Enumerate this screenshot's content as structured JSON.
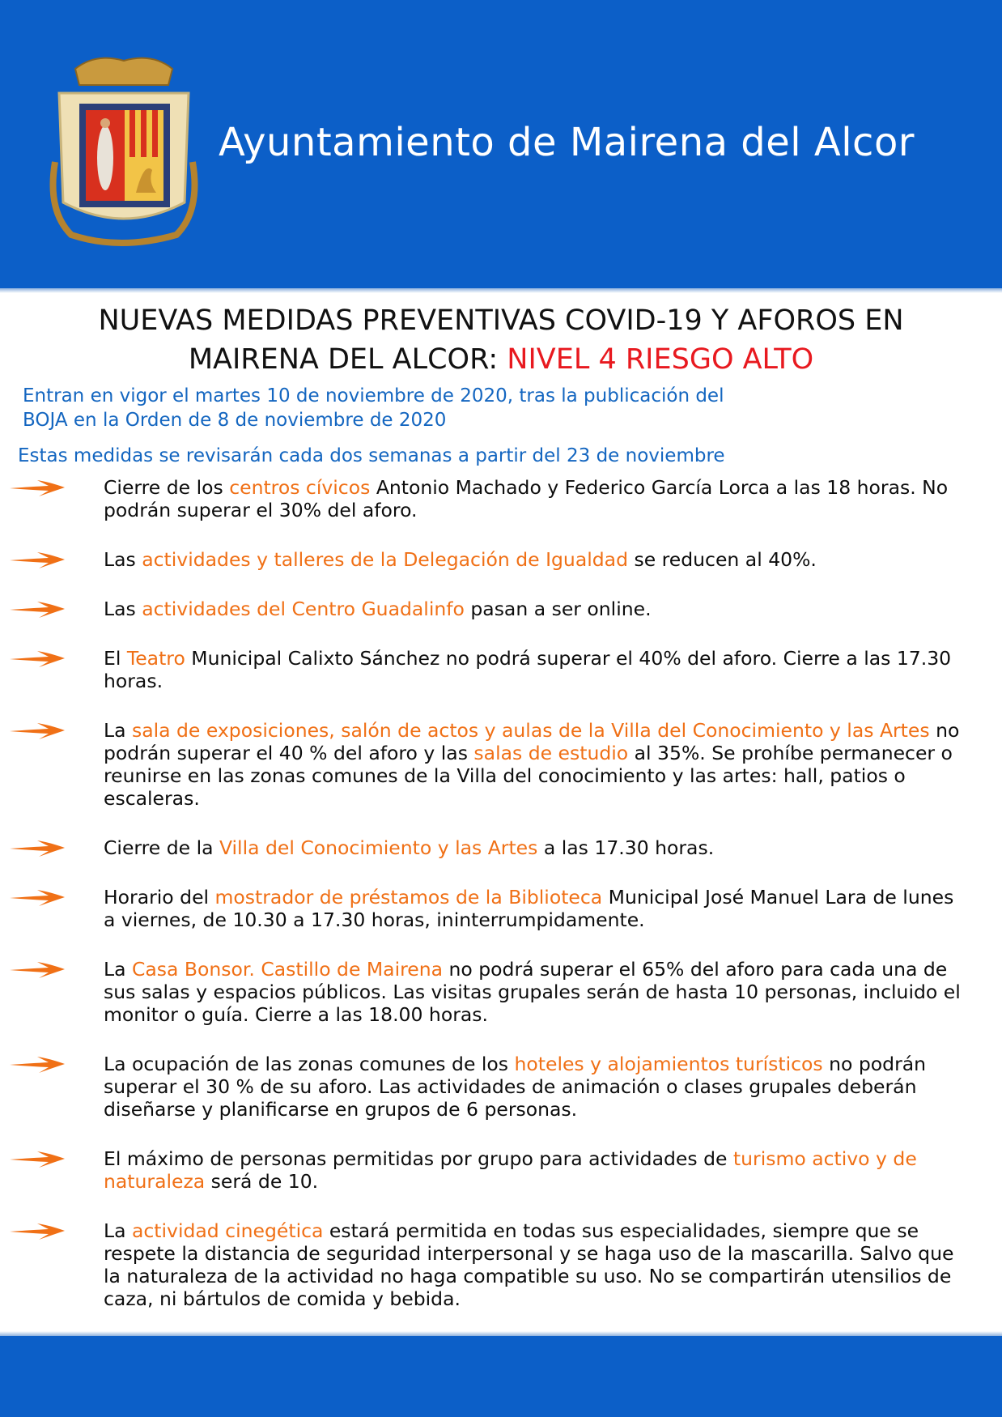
{
  "header": {
    "title": "Ayuntamiento de Mairena del Alcor",
    "logo": "coat-of-arms",
    "color": "#0c5fc8"
  },
  "main_title": {
    "line1": "NUEVAS MEDIDAS PREVENTIVAS COVID-19 Y AFOROS EN",
    "line2_prefix": "MAIRENA DEL ALCOR: ",
    "line2_alert": "NIVEL 4 RIESGO ALTO",
    "alert_color": "#e8191f"
  },
  "subtitle": {
    "line1": "Entran en vigor el martes 10 de noviembre de 2020, tras la publicación del",
    "line2": "BOJA en la Orden de 8 de noviembre de 2020"
  },
  "review_note": "Estas medidas se revisarán cada dos semanas a partir del 23 de noviembre",
  "highlight_color": "#f07016",
  "bullet_icon": "orange-arrow",
  "items": [
    [
      {
        "t": "Cierre de los "
      },
      {
        "t": "centros cívicos",
        "hl": true
      },
      {
        "t": " Antonio Machado y Federico García Lorca a las 18 horas. No podrán superar el 30% del aforo."
      }
    ],
    [
      {
        "t": "Las "
      },
      {
        "t": "actividades y talleres de la Delegación de Igualdad",
        "hl": true
      },
      {
        "t": " se reducen al 40%."
      }
    ],
    [
      {
        "t": "Las "
      },
      {
        "t": "actividades del Centro Guadalinfo",
        "hl": true
      },
      {
        "t": " pasan a ser online."
      }
    ],
    [
      {
        "t": "El "
      },
      {
        "t": "Teatro",
        "hl": true
      },
      {
        "t": " Municipal Calixto Sánchez no podrá superar el 40% del aforo. Cierre a las 17.30 horas."
      }
    ],
    [
      {
        "t": "La "
      },
      {
        "t": "sala de exposiciones, salón de actos y aulas de la Villa del Conocimiento y las Artes",
        "hl": true
      },
      {
        "t": " no podrán superar el 40 % del aforo y las "
      },
      {
        "t": "salas de estudio",
        "hl": true
      },
      {
        "t": " al 35%. Se prohíbe permanecer o reunirse en las zonas comunes de la Villa del conocimiento y las artes: hall, patios o escaleras."
      }
    ],
    [
      {
        "t": "Cierre de la "
      },
      {
        "t": "Villa del Conocimiento y las Artes",
        "hl": true
      },
      {
        "t": " a las 17.30 horas."
      }
    ],
    [
      {
        "t": "Horario del "
      },
      {
        "t": "mostrador de préstamos de la Biblioteca",
        "hl": true
      },
      {
        "t": " Municipal José Manuel Lara de lunes a viernes, de 10.30 a 17.30 horas, ininterrumpidamente."
      }
    ],
    [
      {
        "t": "La "
      },
      {
        "t": "Casa Bonsor. Castillo de Mairena",
        "hl": true
      },
      {
        "t": " no podrá superar el 65% del aforo para cada una de sus salas y espacios públicos. Las visitas grupales serán de hasta 10 personas, incluido el monitor o guía. Cierre a las 18.00 horas."
      }
    ],
    [
      {
        "t": "La ocupación de las zonas comunes de los "
      },
      {
        "t": "hoteles y alojamientos turísticos",
        "hl": true
      },
      {
        "t": " no podrán superar el 30 % de su aforo. Las actividades de animación o clases grupales deberán diseñarse y planificarse en grupos de 6 personas."
      }
    ],
    [
      {
        "t": "El máximo de personas permitidas por grupo para actividades de "
      },
      {
        "t": "turismo activo y de naturaleza",
        "hl": true
      },
      {
        "t": " será de 10."
      }
    ],
    [
      {
        "t": "La "
      },
      {
        "t": "actividad cinegética",
        "hl": true
      },
      {
        "t": " estará permitida en todas sus especialidades, siempre que se respete la distancia de seguridad interpersonal y se haga uso de la mascarilla. Salvo que la naturaleza de la actividad no haga compatible su uso. No se compartirán utensilios de caza, ni bártulos de comida y bebida."
      }
    ]
  ]
}
